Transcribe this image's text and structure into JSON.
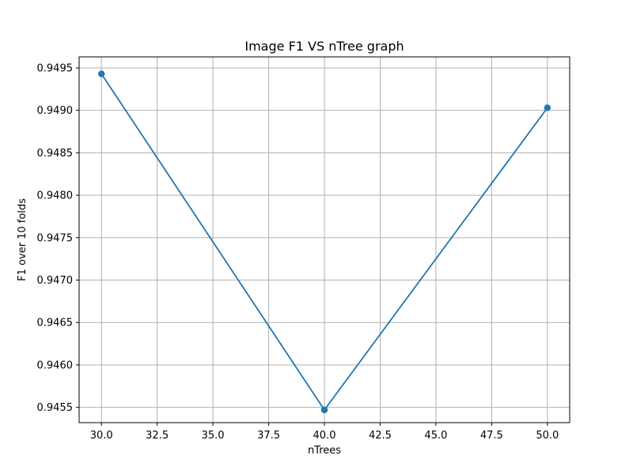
{
  "chart_data": {
    "type": "line",
    "title": "Image F1 VS nTree graph",
    "xlabel": "nTrees",
    "ylabel": "F1 over 10 folds",
    "xlim": [
      29.0,
      51.0
    ],
    "ylim": [
      0.94532,
      0.94963
    ],
    "xticks": [
      30.0,
      32.5,
      35.0,
      37.5,
      40.0,
      42.5,
      45.0,
      47.5,
      50.0
    ],
    "xtick_labels": [
      "30.0",
      "32.5",
      "35.0",
      "37.5",
      "40.0",
      "42.5",
      "45.0",
      "47.5",
      "50.0"
    ],
    "yticks": [
      0.9455,
      0.946,
      0.9465,
      0.947,
      0.9475,
      0.948,
      0.9485,
      0.949,
      0.9495
    ],
    "ytick_labels": [
      "0.9455",
      "0.9460",
      "0.9465",
      "0.9470",
      "0.9475",
      "0.9480",
      "0.9485",
      "0.9490",
      "0.9495"
    ],
    "grid": true,
    "series": [
      {
        "x": [
          30,
          40,
          50
        ],
        "y": [
          0.94943,
          0.94547,
          0.94903
        ],
        "color": "#1f77b4",
        "marker": "circle"
      }
    ]
  }
}
